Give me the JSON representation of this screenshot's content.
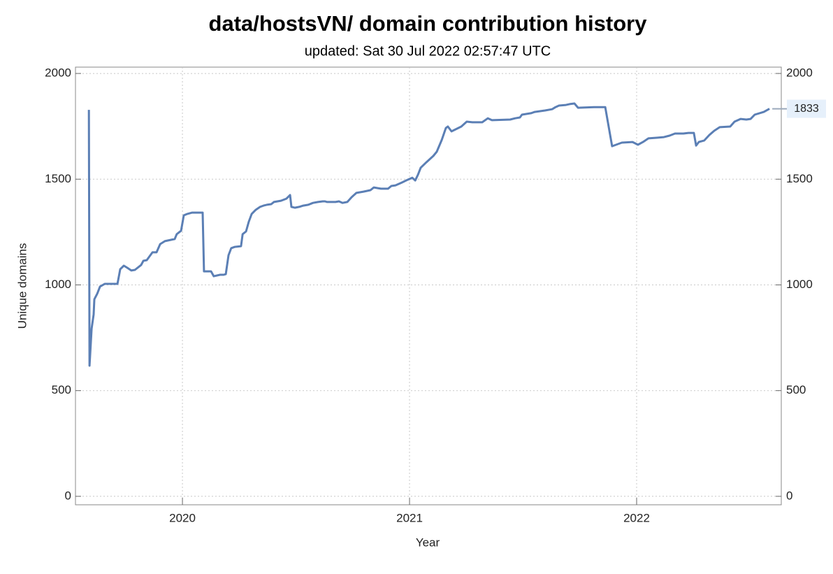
{
  "chart_data": {
    "type": "line",
    "title": "data/hostsVN/ domain contribution history",
    "subtitle": "updated: Sat 30 Jul 2022 02:57:47 UTC",
    "xlabel": "Year",
    "ylabel": "Unique domains",
    "color": "#5b7fb5",
    "grid": true,
    "xlim": [
      2019.529,
      2022.637
    ],
    "xticks": [
      2020,
      2021,
      2022
    ],
    "ylim": [
      -40,
      2030
    ],
    "yticks": [
      0,
      500,
      1000,
      1500,
      2000
    ],
    "x": [
      2019.588,
      2019.591,
      2019.6,
      2019.609,
      2019.612,
      2019.625,
      2019.637,
      2019.658,
      2019.68,
      2019.714,
      2019.726,
      2019.742,
      2019.757,
      2019.775,
      2019.791,
      2019.818,
      2019.828,
      2019.843,
      2019.868,
      2019.886,
      2019.902,
      2019.923,
      2019.948,
      2019.966,
      2019.975,
      2019.994,
      2020.006,
      2020.022,
      2020.043,
      2020.089,
      2020.095,
      2020.126,
      2020.138,
      2020.166,
      2020.182,
      2020.191,
      2020.203,
      2020.215,
      2020.231,
      2020.258,
      2020.265,
      2020.28,
      2020.292,
      2020.305,
      2020.323,
      2020.342,
      2020.357,
      2020.372,
      2020.391,
      2020.403,
      2020.434,
      2020.458,
      2020.474,
      2020.48,
      2020.495,
      2020.514,
      2020.532,
      2020.554,
      2020.575,
      2020.597,
      2020.618,
      2020.628,
      2020.637,
      2020.674,
      2020.689,
      2020.705,
      2020.726,
      2020.745,
      2020.766,
      2020.797,
      2020.828,
      2020.843,
      2020.858,
      2020.874,
      2020.905,
      2020.92,
      2020.938,
      2020.966,
      2020.991,
      2021.012,
      2021.025,
      2021.037,
      2021.049,
      2021.074,
      2021.105,
      2021.12,
      2021.142,
      2021.16,
      2021.169,
      2021.185,
      2021.228,
      2021.252,
      2021.277,
      2021.32,
      2021.345,
      2021.363,
      2021.443,
      2021.465,
      2021.486,
      2021.495,
      2021.535,
      2021.551,
      2021.597,
      2021.628,
      2021.643,
      2021.658,
      2021.689,
      2021.705,
      2021.726,
      2021.742,
      2021.812,
      2021.862,
      2021.892,
      2021.935,
      2021.982,
      2022.006,
      2022.028,
      2022.052,
      2022.089,
      2022.12,
      2022.145,
      2022.169,
      2022.206,
      2022.228,
      2022.252,
      2022.262,
      2022.274,
      2022.298,
      2022.32,
      2022.342,
      2022.366,
      2022.412,
      2022.431,
      2022.458,
      2022.483,
      2022.502,
      2022.52,
      2022.56,
      2022.585
    ],
    "values": [
      1828,
      618,
      793,
      860,
      932,
      959,
      992,
      1005,
      1005,
      1005,
      1074,
      1091,
      1081,
      1068,
      1071,
      1094,
      1114,
      1117,
      1154,
      1154,
      1193,
      1207,
      1213,
      1217,
      1240,
      1256,
      1329,
      1336,
      1342,
      1342,
      1064,
      1064,
      1041,
      1048,
      1048,
      1051,
      1140,
      1174,
      1180,
      1183,
      1240,
      1253,
      1299,
      1336,
      1355,
      1369,
      1375,
      1379,
      1382,
      1392,
      1398,
      1408,
      1425,
      1369,
      1365,
      1369,
      1375,
      1379,
      1388,
      1392,
      1395,
      1395,
      1392,
      1392,
      1395,
      1388,
      1392,
      1415,
      1435,
      1441,
      1448,
      1461,
      1458,
      1455,
      1455,
      1468,
      1471,
      1484,
      1497,
      1507,
      1494,
      1521,
      1554,
      1580,
      1610,
      1630,
      1686,
      1742,
      1749,
      1726,
      1749,
      1772,
      1769,
      1769,
      1788,
      1779,
      1782,
      1788,
      1792,
      1805,
      1812,
      1818,
      1825,
      1831,
      1841,
      1848,
      1851,
      1855,
      1858,
      1838,
      1841,
      1841,
      1656,
      1673,
      1676,
      1663,
      1676,
      1693,
      1696,
      1699,
      1706,
      1716,
      1716,
      1719,
      1719,
      1659,
      1676,
      1683,
      1709,
      1729,
      1746,
      1749,
      1772,
      1785,
      1782,
      1785,
      1805,
      1818,
      1833
    ]
  }
}
